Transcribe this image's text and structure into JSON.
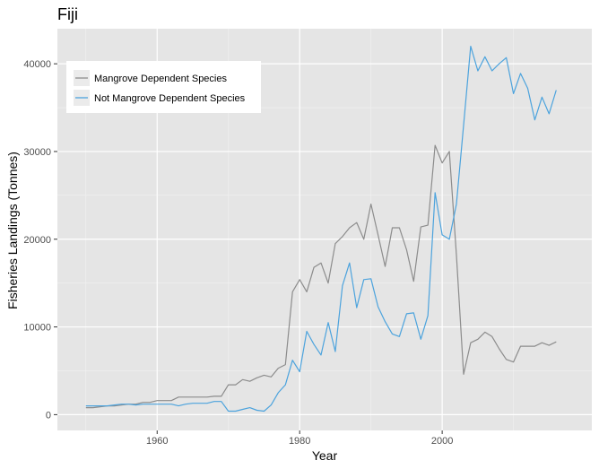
{
  "chart_data": {
    "type": "line",
    "title": "Fiji",
    "xlabel": "Year",
    "ylabel": "Fisheries Landings (Tonnes)",
    "xlim": [
      1946,
      2021
    ],
    "ylim": [
      -1800,
      44000
    ],
    "x_ticks": [
      1960,
      1980,
      2000
    ],
    "y_ticks": [
      0,
      10000,
      20000,
      30000,
      40000
    ],
    "x_tick_labels": [
      "1960",
      "1980",
      "2000"
    ],
    "y_tick_labels": [
      "0",
      "10000",
      "20000",
      "30000",
      "40000"
    ],
    "grid": true,
    "legend_position": "top-left",
    "x": [
      1950,
      1951,
      1952,
      1953,
      1954,
      1955,
      1956,
      1957,
      1958,
      1959,
      1960,
      1961,
      1962,
      1963,
      1964,
      1965,
      1966,
      1967,
      1968,
      1969,
      1970,
      1971,
      1972,
      1973,
      1974,
      1975,
      1976,
      1977,
      1978,
      1979,
      1980,
      1981,
      1982,
      1983,
      1984,
      1985,
      1986,
      1987,
      1988,
      1989,
      1990,
      1991,
      1992,
      1993,
      1994,
      1995,
      1996,
      1997,
      1998,
      1999,
      2000,
      2001,
      2002,
      2003,
      2004,
      2005,
      2006,
      2007,
      2008,
      2009,
      2010,
      2011,
      2012,
      2013,
      2014,
      2015,
      2016
    ],
    "series": [
      {
        "name": "Mangrove Dependent Species",
        "color": "#8c8c8c",
        "values": [
          800,
          800,
          900,
          1000,
          1000,
          1100,
          1200,
          1200,
          1400,
          1400,
          1600,
          1600,
          1600,
          2000,
          2000,
          2000,
          2000,
          2000,
          2100,
          2100,
          3400,
          3400,
          4000,
          3800,
          4200,
          4500,
          4300,
          5300,
          5700,
          14000,
          15400,
          14000,
          16800,
          17300,
          15000,
          19500,
          20300,
          21300,
          21900,
          20000,
          24000,
          20500,
          16900,
          21300,
          21300,
          18800,
          15200,
          21400,
          21600,
          30700,
          28700,
          30000,
          18200,
          4600,
          8200,
          8600,
          9400,
          8900,
          7500,
          6300,
          6000,
          7800,
          7800,
          7800,
          8200,
          7900,
          8300
        ]
      },
      {
        "name": "Not Mangrove Dependent Species",
        "color": "#4ca3dd",
        "values": [
          1000,
          1000,
          1000,
          1000,
          1100,
          1200,
          1200,
          1100,
          1200,
          1200,
          1200,
          1200,
          1200,
          1000,
          1200,
          1300,
          1300,
          1300,
          1500,
          1500,
          400,
          400,
          600,
          800,
          500,
          400,
          1100,
          2500,
          3400,
          6200,
          4900,
          9500,
          8000,
          6800,
          10500,
          7200,
          14700,
          17300,
          12200,
          15400,
          15500,
          12300,
          10600,
          9200,
          8900,
          11500,
          11600,
          8600,
          11300,
          25300,
          20500,
          20000,
          24000,
          33000,
          42000,
          39200,
          40800,
          39200,
          40000,
          40700,
          36600,
          38900,
          37200,
          33600,
          36200,
          34300,
          37000
        ]
      }
    ]
  }
}
